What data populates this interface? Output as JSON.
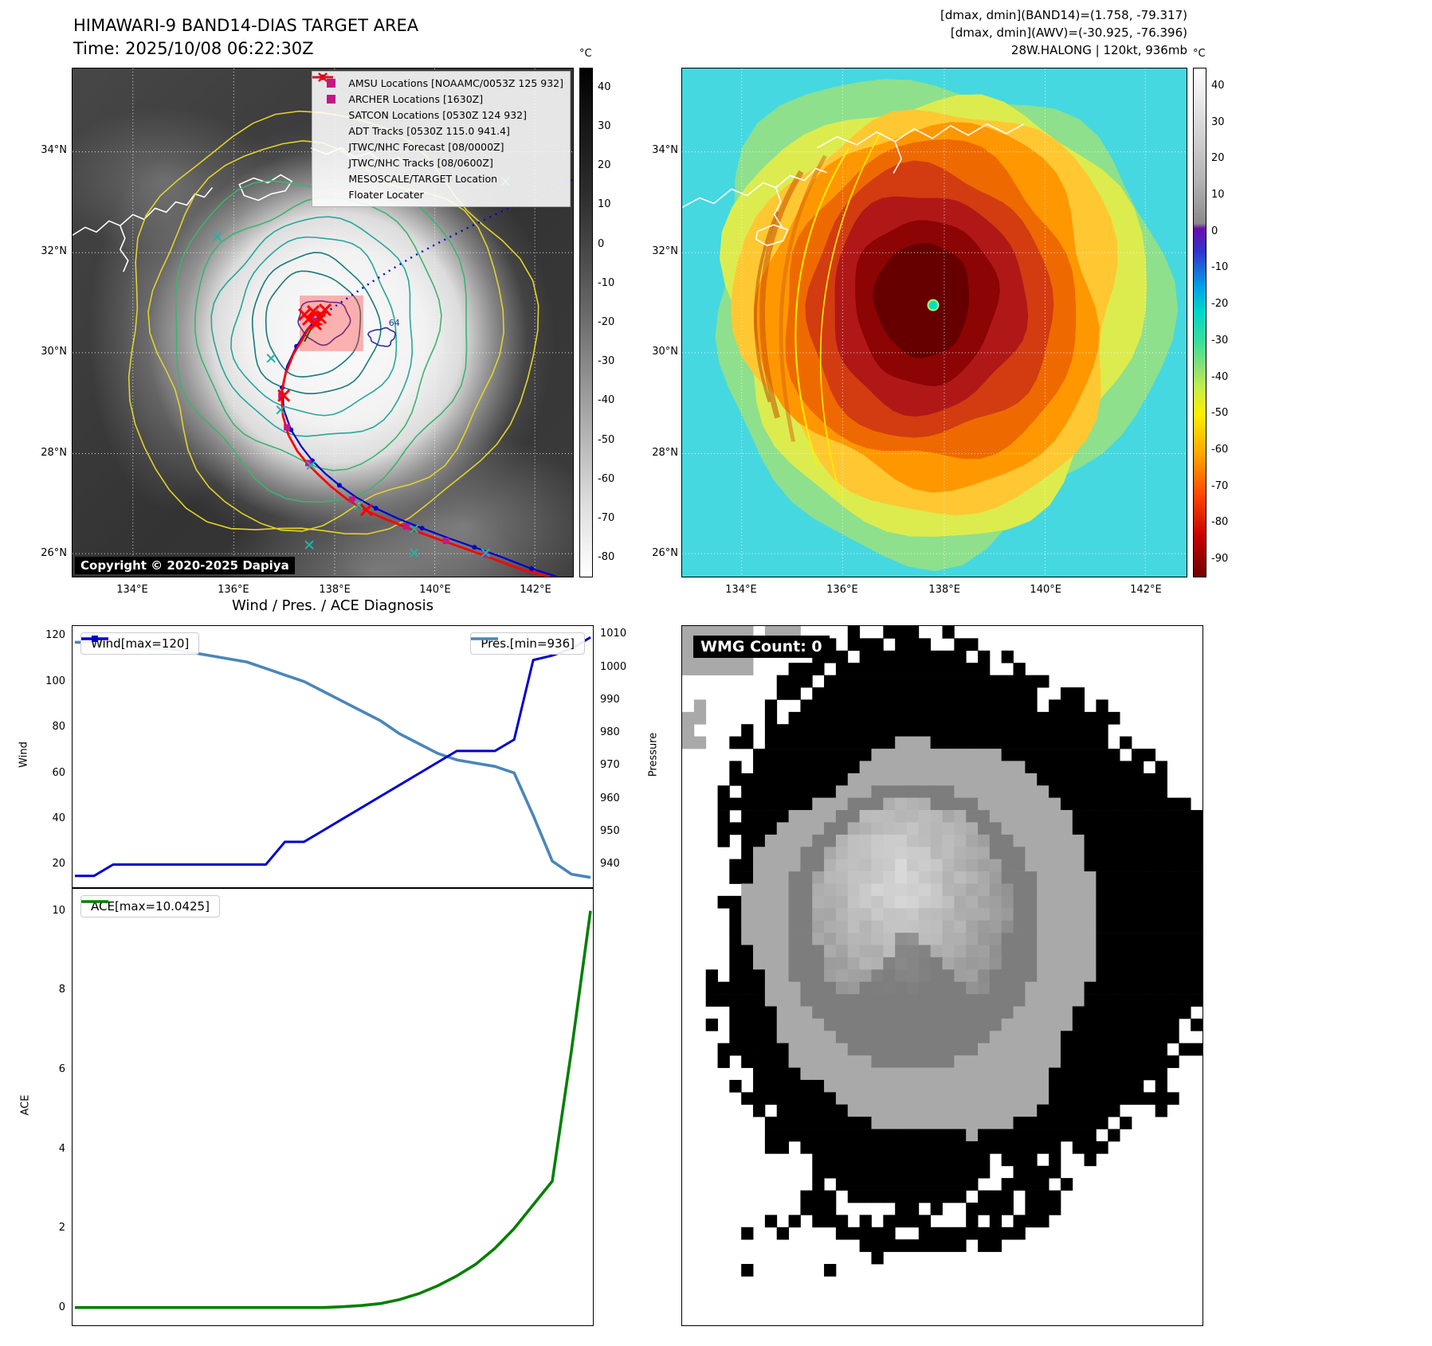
{
  "colors": {
    "magenta": "#c71585",
    "teal": "#20b2aa",
    "adt_green": "#006400",
    "track_blue": "#0000cd",
    "red": "#ff0000",
    "wind_line": "#0000cd",
    "pres_line": "#4a86b8",
    "ace_line": "#007f00"
  },
  "panel_tl": {
    "title": "HIMAWARI-9 BAND14-DIAS TARGET AREA",
    "subtitle": "Time: 2025/10/08 06:22:30Z",
    "copyright": "Copyright © 2020-2025 Dapiya",
    "contour_label": "64",
    "legend": [
      {
        "label": "AMSU Locations [NOAAMC/0053Z 125 932]",
        "marker": "square",
        "color": "#c71585"
      },
      {
        "label": "ARCHER Locations [1630Z]",
        "marker": "square",
        "color": "#c71585"
      },
      {
        "label": "SATCON Locations [0530Z 124 932]",
        "marker": "x",
        "color": "#20b2aa"
      },
      {
        "label": "ADT Tracks [0530Z 115.0 941.4]",
        "marker": "line",
        "color": "#006400"
      },
      {
        "label": "JTWC/NHC Forecast [08/0000Z]",
        "marker": "dotted",
        "color": "#0000cd"
      },
      {
        "label": "JTWC/NHC Tracks [08/0600Z]",
        "marker": "linedot",
        "color": "#0000cd"
      },
      {
        "label": "MESOSCALE/TARGET Location",
        "marker": "x",
        "color": "#ff0000"
      },
      {
        "label": "Floater Locater",
        "marker": "line",
        "color": "#ff0000"
      }
    ],
    "colorbar_unit": "°C",
    "colorbar_ticks": [
      40,
      30,
      20,
      10,
      0,
      -10,
      -20,
      -30,
      -40,
      -50,
      -60,
      -70,
      -80
    ],
    "x_ticks": [
      "134°E",
      "136°E",
      "138°E",
      "140°E",
      "142°E"
    ],
    "y_ticks": [
      "34°N",
      "32°N",
      "30°N",
      "28°N",
      "26°N"
    ]
  },
  "panel_tr": {
    "header": [
      "[dmax, dmin](BAND14)=(1.758, -79.317)",
      "[dmax, dmin](AWV)=(-30.925, -76.396)",
      "28W.HALONG | 120kt, 936mb"
    ],
    "colorbar_unit": "°C",
    "colorbar_ticks": [
      40,
      30,
      20,
      10,
      0,
      -10,
      -20,
      -30,
      -40,
      -50,
      -60,
      -70,
      -80,
      -90
    ],
    "x_ticks": [
      "134°E",
      "136°E",
      "138°E",
      "140°E",
      "142°E"
    ],
    "y_ticks": [
      "34°N",
      "32°N",
      "30°N",
      "28°N",
      "26°N"
    ]
  },
  "panel_br": {
    "label": "WMG Count: 0"
  },
  "chart_data": [
    {
      "type": "line",
      "title": "Wind / Pres. / ACE Diagnosis",
      "x": [
        0,
        1,
        2,
        3,
        4,
        5,
        6,
        7,
        8,
        9,
        10,
        11,
        12,
        13,
        14,
        15,
        16,
        17,
        18,
        19,
        20,
        21,
        22,
        23,
        24,
        25,
        26,
        27
      ],
      "series": [
        {
          "name": "Wind[max=120]",
          "axis": "left",
          "color": "#0000cd",
          "values": [
            15,
            15,
            20,
            20,
            20,
            20,
            20,
            20,
            20,
            20,
            20,
            30,
            30,
            35,
            40,
            45,
            50,
            55,
            60,
            65,
            70,
            70,
            70,
            75,
            110,
            112,
            115,
            120
          ]
        },
        {
          "name": "Pres.[min=936]",
          "axis": "right",
          "color": "#4a86b8",
          "values": [
            1008,
            1008,
            1007,
            1007,
            1006,
            1006,
            1005,
            1004,
            1003,
            1002,
            1000,
            998,
            996,
            993,
            990,
            987,
            984,
            980,
            977,
            974,
            972,
            971,
            970,
            968,
            955,
            941,
            937,
            936
          ]
        }
      ],
      "left_axis": {
        "label": "Wind",
        "ticks": [
          20,
          40,
          60,
          80,
          100,
          120
        ],
        "range": [
          10,
          125
        ]
      },
      "right_axis": {
        "label": "Pressure",
        "ticks": [
          940,
          950,
          960,
          970,
          980,
          990,
          1000,
          1010
        ],
        "range": [
          933,
          1013
        ]
      },
      "grid": false,
      "legend_position": "top-left / top-right"
    },
    {
      "type": "line",
      "x": [
        0,
        1,
        2,
        3,
        4,
        5,
        6,
        7,
        8,
        9,
        10,
        11,
        12,
        13,
        14,
        15,
        16,
        17,
        18,
        19,
        20,
        21,
        22,
        23,
        24,
        25,
        26,
        27
      ],
      "series": [
        {
          "name": "ACE[max=10.0425]",
          "axis": "left",
          "color": "#007f00",
          "values": [
            0,
            0,
            0,
            0,
            0,
            0,
            0,
            0,
            0,
            0,
            0,
            0,
            0,
            0,
            0.02,
            0.05,
            0.1,
            0.2,
            0.35,
            0.55,
            0.8,
            1.1,
            1.5,
            2.0,
            2.6,
            3.2,
            6.5,
            10.0425
          ]
        }
      ],
      "left_axis": {
        "label": "ACE",
        "ticks": [
          0,
          2,
          4,
          6,
          8,
          10
        ],
        "range": [
          -0.45,
          10.6
        ]
      },
      "grid": false,
      "legend_position": "top-left"
    }
  ]
}
